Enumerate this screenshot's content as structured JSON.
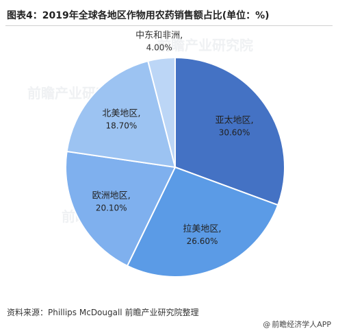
{
  "page": {
    "title": "图表4：2019年全球各地区作物用农药销售额占比(单位：%)",
    "watermark": "前瞻产业研究院",
    "source": "资料来源：Phillips McDougall 前瞻产业研究院整理",
    "credit": "前瞻经济学人APP",
    "credit_icon": "at-icon"
  },
  "chart_data": {
    "type": "pie",
    "title": "图表4：2019年全球各地区作物用农药销售额占比(单位：%)",
    "unit": "%",
    "start": "12 o'clock",
    "direction": "clockwise",
    "slices": [
      {
        "label": "亚太地区,",
        "value": 30.6,
        "value_text": "30.60%",
        "color": "#4472c4"
      },
      {
        "label": "拉美地区,",
        "value": 26.6,
        "value_text": "26.60%",
        "color": "#5b9be6"
      },
      {
        "label": "欧洲地区,",
        "value": 20.1,
        "value_text": "20.10%",
        "color": "#7fb0ee"
      },
      {
        "label": "北美地区,",
        "value": 18.7,
        "value_text": "18.70%",
        "color": "#9cc3f2"
      },
      {
        "label": "中东和非洲,",
        "value": 4.0,
        "value_text": "4.00%",
        "color": "#bcd6f6"
      }
    ]
  }
}
